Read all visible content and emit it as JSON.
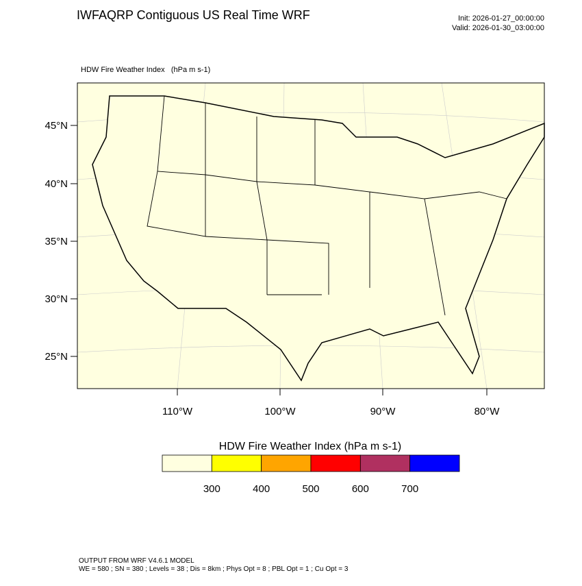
{
  "header": {
    "title": "IWFAQRP Contiguous US Real Time WRF",
    "init": "Init: 2026-01-27_00:00:00",
    "valid": "Valid: 2026-01-30_03:00:00"
  },
  "map": {
    "field_label": "HDW Fire Weather Index   (hPa m s-1)",
    "lat_labels": [
      "45°N",
      "40°N",
      "35°N",
      "30°N",
      "25°N"
    ],
    "lon_labels": [
      "110°W",
      "100°W",
      "90°W",
      "80°W"
    ]
  },
  "colorbar": {
    "title": "HDW Fire Weather Index (hPa m s-1)",
    "colors": [
      "#ffffe0",
      "#ffff00",
      "#ffa500",
      "#ff0000",
      "#b03060",
      "#0000ff"
    ],
    "ticks": [
      300,
      400,
      500,
      600,
      700
    ]
  },
  "footer": {
    "line1": "OUTPUT FROM WRF V4.6.1 MODEL",
    "line2": "WE = 580 ; SN = 380 ; Levels = 38 ; Dis = 8km ; Phys Opt = 8 ; PBL Opt = 1 ; Cu Opt = 3"
  }
}
